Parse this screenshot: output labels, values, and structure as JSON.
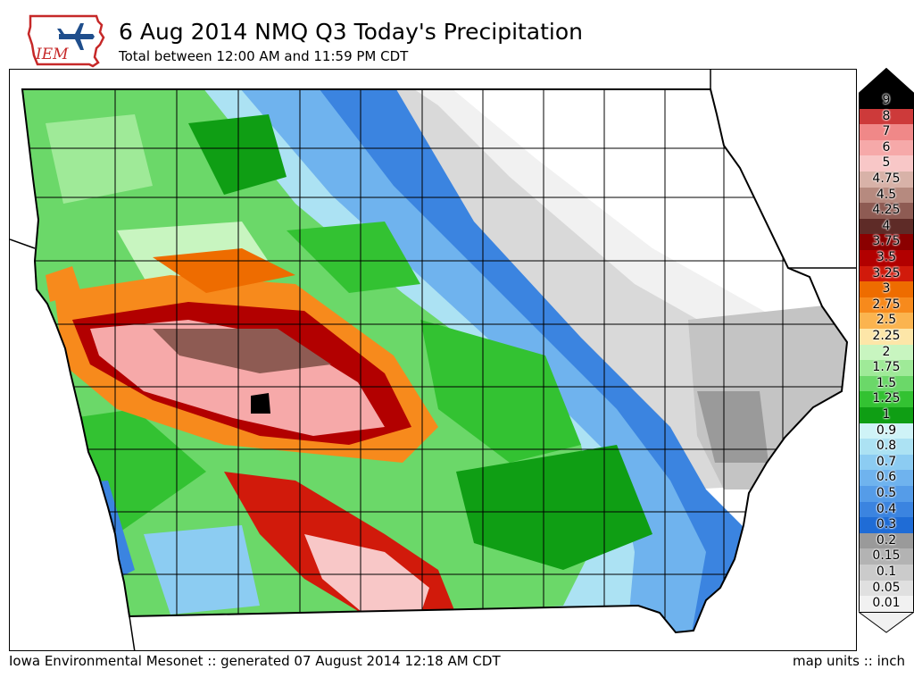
{
  "header": {
    "logo_text": "IEM",
    "title": "6 Aug 2014 NMQ Q3 Today's Precipitation",
    "subtitle": "Total between 12:00 AM and 11:59 PM CDT"
  },
  "footer": {
    "source": "Iowa Environmental Mesonet :: generated 07 August 2014 12:18 AM CDT",
    "units": "map units :: inch"
  },
  "colors": {
    "logo_red": "#c62828",
    "logo_blue": "#1f4e8c",
    "state_border": "#000000",
    "county_lines": "#000000"
  },
  "legend": {
    "items": [
      {
        "label": "9",
        "color": "#000000"
      },
      {
        "label": "8",
        "color": "#cd3a3a"
      },
      {
        "label": "7",
        "color": "#f08888"
      },
      {
        "label": "6",
        "color": "#f6a9a9"
      },
      {
        "label": "5",
        "color": "#f8c7c7"
      },
      {
        "label": "4.75",
        "color": "#d8b2a8"
      },
      {
        "label": "4.5",
        "color": "#b68a7f"
      },
      {
        "label": "4.25",
        "color": "#8e5b53"
      },
      {
        "label": "4",
        "color": "#5e2b27"
      },
      {
        "label": "3.75",
        "color": "#8b0000"
      },
      {
        "label": "3.5",
        "color": "#b20000"
      },
      {
        "label": "3.25",
        "color": "#d11a0b"
      },
      {
        "label": "3",
        "color": "#ee6c00"
      },
      {
        "label": "2.75",
        "color": "#f78a1c"
      },
      {
        "label": "2.5",
        "color": "#fbb44f"
      },
      {
        "label": "2.25",
        "color": "#fde6a8"
      },
      {
        "label": "2",
        "color": "#c8f5c0"
      },
      {
        "label": "1.75",
        "color": "#9fea98"
      },
      {
        "label": "1.5",
        "color": "#6bd869"
      },
      {
        "label": "1.25",
        "color": "#33c232"
      },
      {
        "label": "1",
        "color": "#0f9e14"
      },
      {
        "label": "0.9",
        "color": "#cff3f7"
      },
      {
        "label": "0.8",
        "color": "#ace2f3"
      },
      {
        "label": "0.7",
        "color": "#8cccf2"
      },
      {
        "label": "0.6",
        "color": "#6fb3ee"
      },
      {
        "label": "0.5",
        "color": "#559ce8"
      },
      {
        "label": "0.4",
        "color": "#3b84e0"
      },
      {
        "label": "0.3",
        "color": "#1f6cd6"
      },
      {
        "label": "0.2",
        "color": "#9a9a9a"
      },
      {
        "label": "0.15",
        "color": "#b3b3b3"
      },
      {
        "label": "0.1",
        "color": "#cbcbcb"
      },
      {
        "label": "0.05",
        "color": "#e0e0e0"
      },
      {
        "label": "0.01",
        "color": "#f1f1f1"
      }
    ]
  }
}
